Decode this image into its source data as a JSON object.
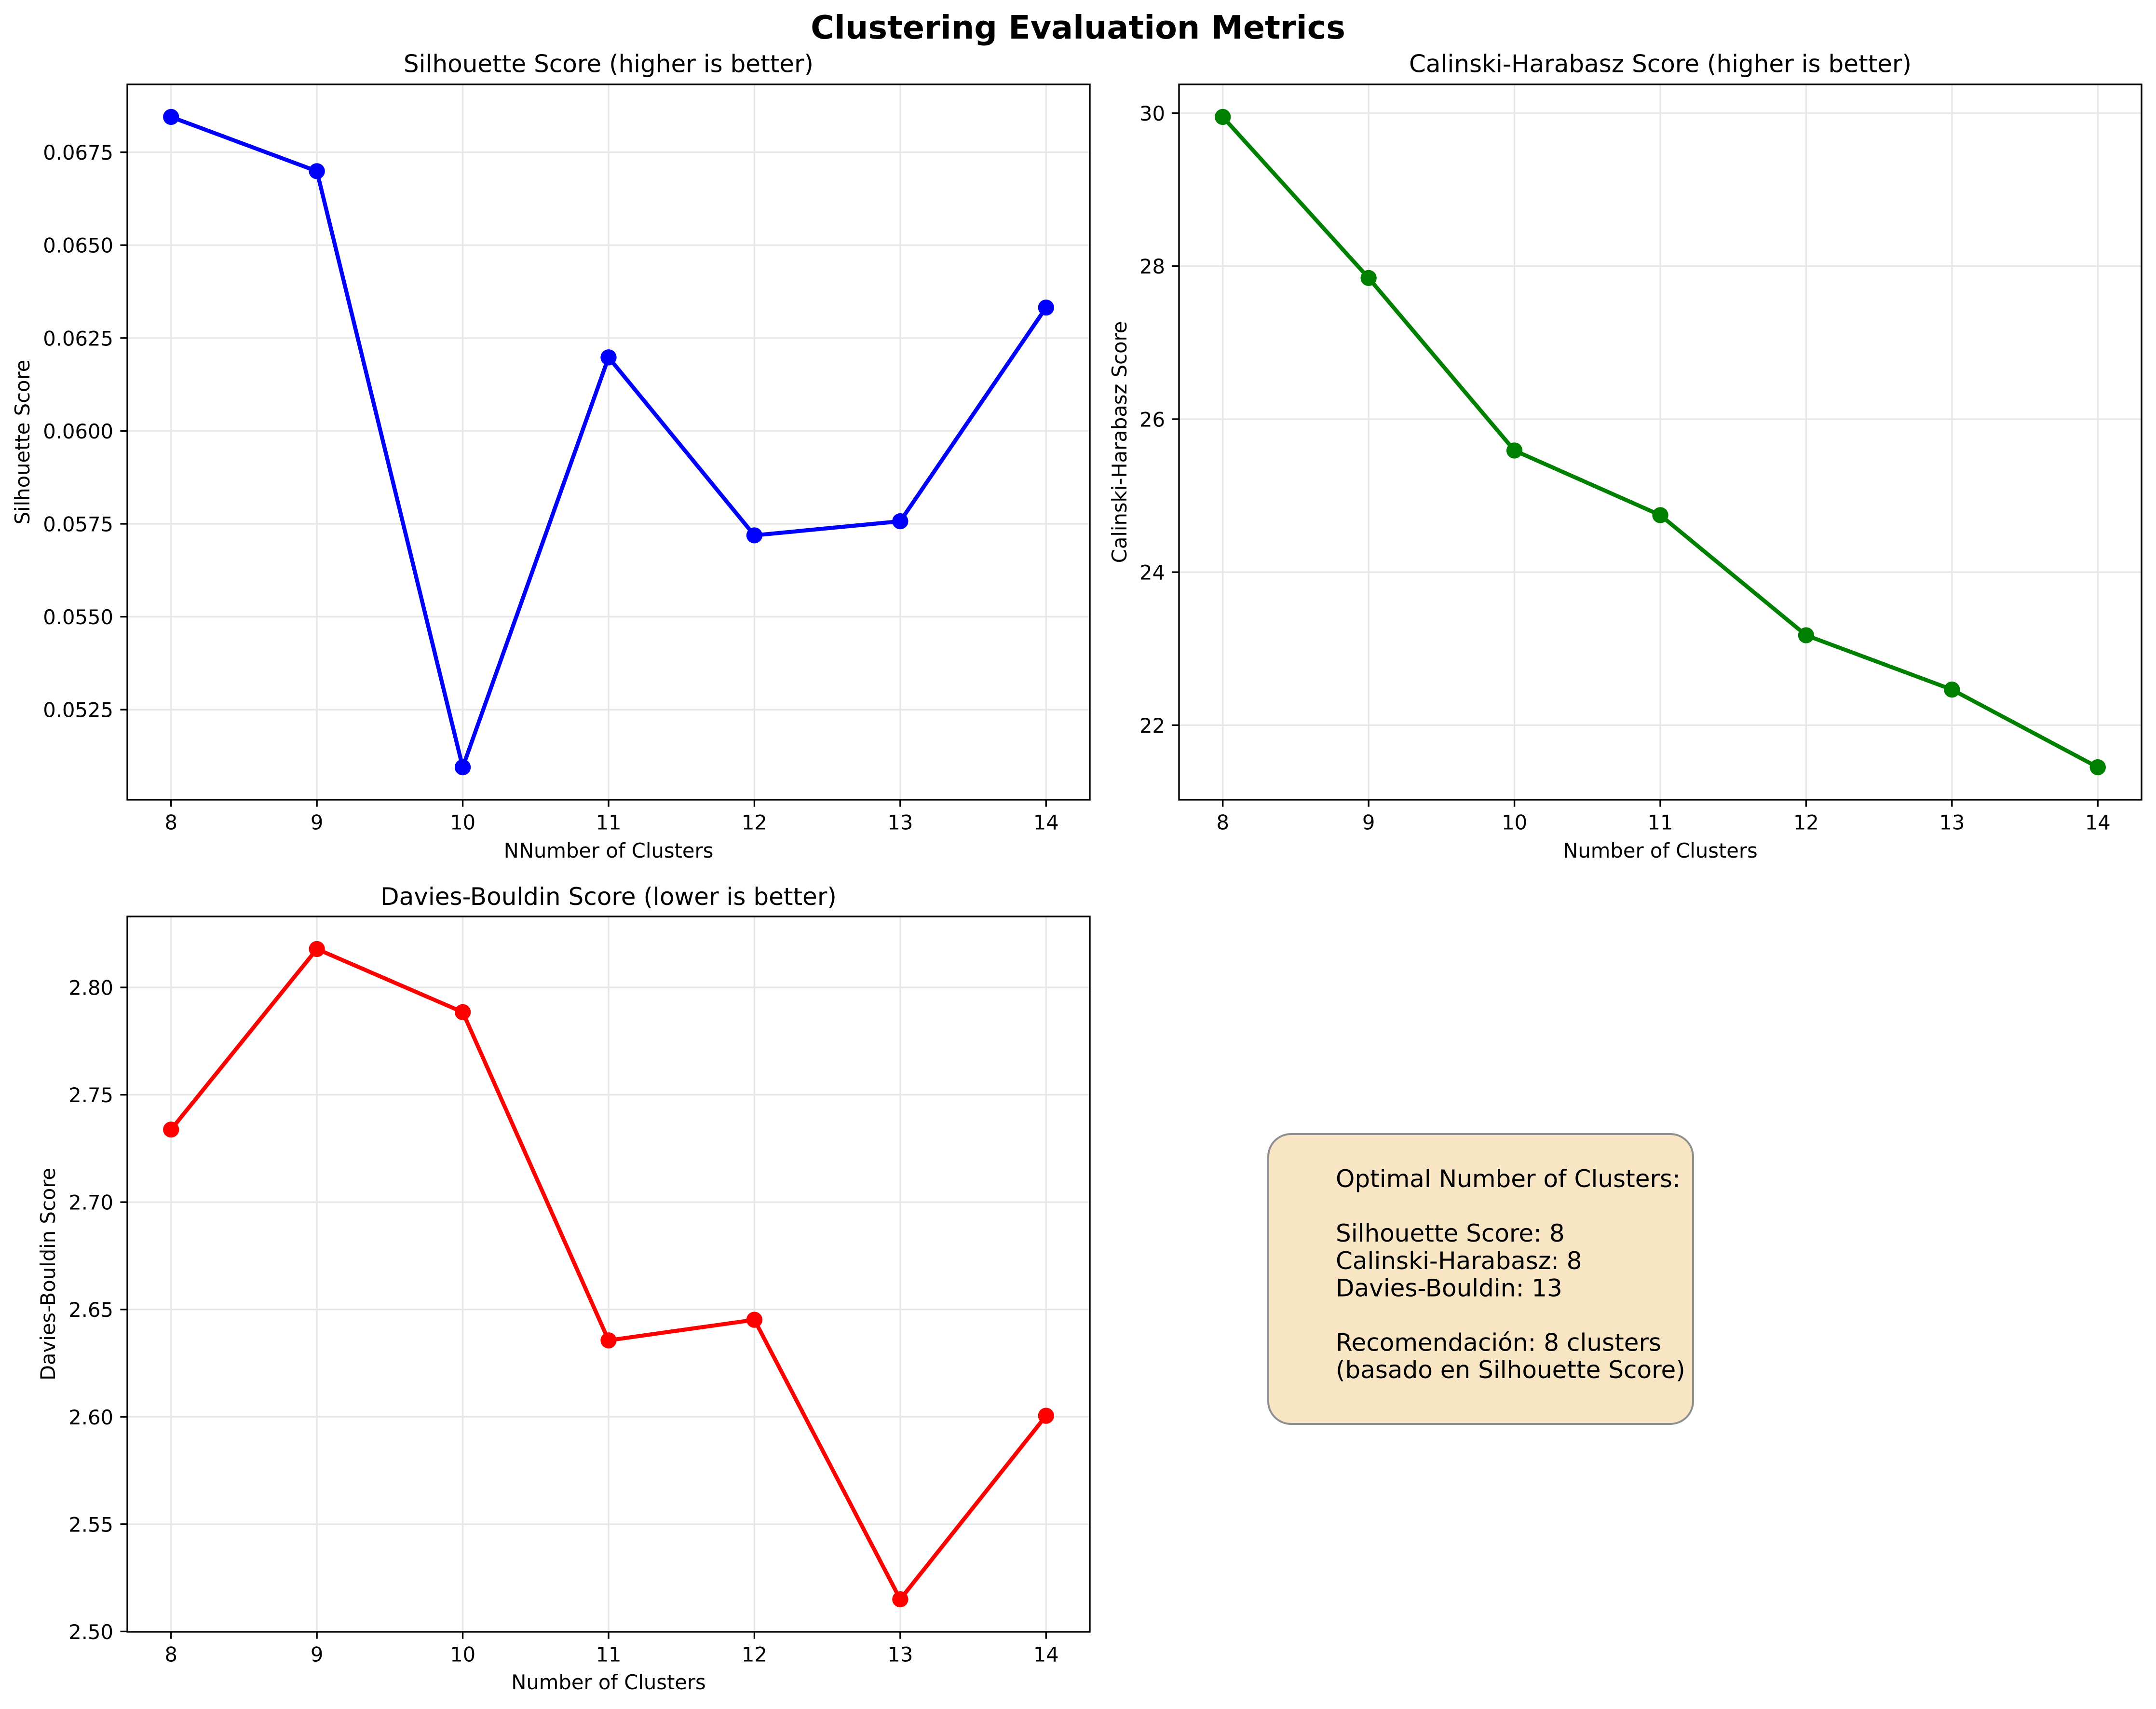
{
  "title": "Clustering Evaluation Metrics",
  "chart_data": [
    {
      "type": "line",
      "title": "Silhouette Score (higher is better)",
      "xlabel": "NNumber of Clusters",
      "ylabel": "Silhouette Score",
      "x": [
        8,
        9,
        10,
        11,
        12,
        13,
        14
      ],
      "values": [
        0.06845,
        0.06699,
        0.05095,
        0.06198,
        0.05719,
        0.05757,
        0.06332
      ],
      "color": "#0000ff",
      "marker": "o",
      "xlim": [
        7.7,
        14.3
      ],
      "xticks": [
        8,
        9,
        10,
        11,
        12,
        13,
        14
      ],
      "xtick_labels": [
        "8",
        "9",
        "10",
        "11",
        "12",
        "13",
        "14"
      ],
      "yticks": [
        0.0525,
        0.055,
        0.0575,
        0.06,
        0.0625,
        0.065,
        0.0675
      ],
      "ytick_labels": [
        "0.0525",
        "0.0550",
        "0.0575",
        "0.0600",
        "0.0625",
        "0.0650",
        "0.0675"
      ],
      "grid": true
    },
    {
      "type": "line",
      "title": "Calinski-Harabasz Score (higher is better)",
      "xlabel": "Number of Clusters",
      "ylabel": "Calinski-Harabasz Score",
      "x": [
        8,
        9,
        10,
        11,
        12,
        13,
        14
      ],
      "values": [
        29.95,
        27.845,
        25.59,
        24.745,
        23.175,
        22.465,
        21.45
      ],
      "color": "#008000",
      "marker": "o",
      "xlim": [
        7.7,
        14.3
      ],
      "xticks": [
        8,
        9,
        10,
        11,
        12,
        13,
        14
      ],
      "xtick_labels": [
        "8",
        "9",
        "10",
        "11",
        "12",
        "13",
        "14"
      ],
      "yticks": [
        22,
        24,
        26,
        28,
        30
      ],
      "ytick_labels": [
        "22",
        "24",
        "26",
        "28",
        "30"
      ],
      "grid": true
    },
    {
      "type": "line",
      "title": "Davies-Bouldin Score (lower is better)",
      "xlabel": "Number of Clusters",
      "ylabel": "Davies-Bouldin Score",
      "x": [
        8,
        9,
        10,
        11,
        12,
        13,
        14
      ],
      "values": [
        2.7338,
        2.8179,
        2.7885,
        2.6356,
        2.6452,
        2.515,
        2.6005
      ],
      "color": "#ff0000",
      "marker": "o",
      "xlim": [
        7.7,
        14.3
      ],
      "xticks": [
        8,
        9,
        10,
        11,
        12,
        13,
        14
      ],
      "xtick_labels": [
        "8",
        "9",
        "10",
        "11",
        "12",
        "13",
        "14"
      ],
      "yticks": [
        2.5,
        2.55,
        2.6,
        2.65,
        2.7,
        2.75,
        2.8
      ],
      "ytick_labels": [
        "2.50",
        "2.55",
        "2.60",
        "2.65",
        "2.70",
        "2.75",
        "2.80"
      ],
      "grid": true
    }
  ],
  "info_box": {
    "lines": [
      "Optimal Number of Clusters:",
      "",
      "Silhouette Score: 8",
      "Calinski-Harabasz: 8",
      "Davies-Bouldin: 13",
      "",
      "Recomendación: 8 clusters",
      "(basado en Silhouette Score)"
    ],
    "fill_color": "wheat",
    "border_color": "gray"
  },
  "colors": {
    "silhouette_line": "#0000ff",
    "calinski_line": "#008000",
    "davies_line": "#ff0000",
    "grid_line": "#e7e7e7",
    "box_fill": "#f7e5c3",
    "box_border": "#8f8f8f"
  }
}
